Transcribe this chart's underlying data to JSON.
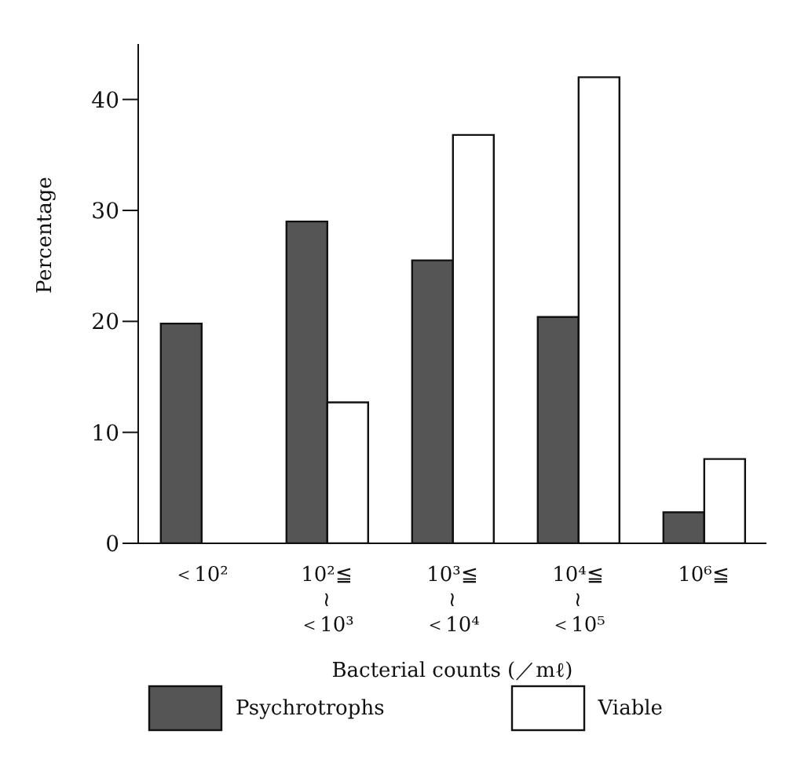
{
  "chart_data": {
    "type": "bar",
    "xlabel": "Bacterial counts (／mℓ)",
    "ylabel": "Percentage",
    "categories": [
      "＜10²",
      "10²≦\n≀\n＜10³",
      "10³≦\n≀\n＜10⁴",
      "10⁴≦\n≀\n＜10⁵",
      "10⁶≦"
    ],
    "series": [
      {
        "name": "Psychrotrophs",
        "color": "#555555",
        "values": [
          19.8,
          29,
          25.5,
          20.4,
          2.8
        ]
      },
      {
        "name": "Viable",
        "color": "#ffffff",
        "values": [
          null,
          12.7,
          36.8,
          42,
          7.6
        ]
      }
    ],
    "ylim": [
      0,
      45
    ],
    "yticks": [
      0,
      10,
      20,
      30,
      40
    ],
    "grid": false,
    "legend": "bottom"
  }
}
